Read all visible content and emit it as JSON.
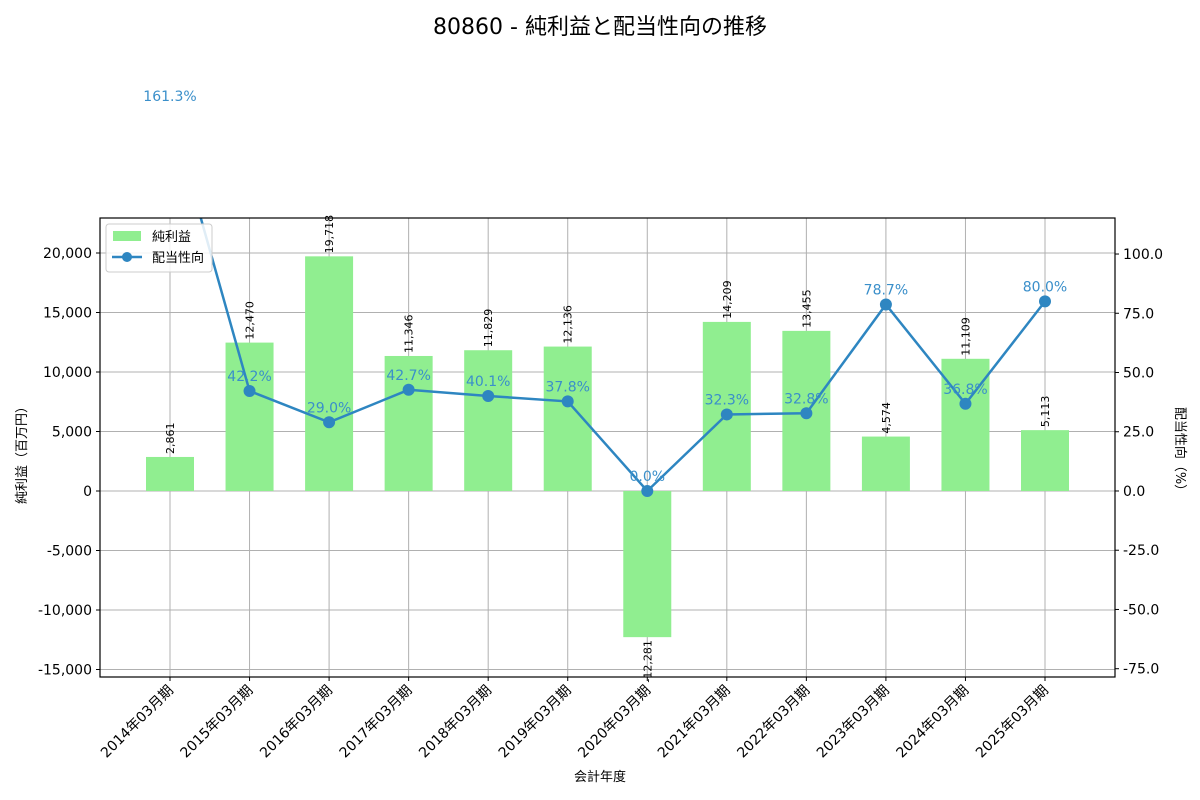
{
  "chart_data": {
    "type": "bar+line",
    "title": "80860 - 純利益と配当性向の推移",
    "xlabel": "会計年度",
    "ylabel_left": "純利益（百万円）",
    "ylabel_right": "配当性向（%）",
    "categories": [
      "2014年03月期",
      "2015年03月期",
      "2016年03月期",
      "2017年03月期",
      "2018年03月期",
      "2019年03月期",
      "2020年03月期",
      "2021年03月期",
      "2022年03月期",
      "2023年03月期",
      "2024年03月期",
      "2025年03月期"
    ],
    "series": [
      {
        "name": "純利益",
        "type": "bar",
        "axis": "left",
        "color": "#90ee90",
        "values": [
          2861,
          12470,
          19718,
          11346,
          11829,
          12136,
          -12281,
          14209,
          13455,
          4574,
          11109,
          5113
        ],
        "labels": [
          "2,861",
          "12,470",
          "19,718",
          "11,346",
          "11,829",
          "12,136",
          "-12,281",
          "14,209",
          "13,455",
          "4,574",
          "11,109",
          "5,113"
        ]
      },
      {
        "name": "配当性向",
        "type": "line",
        "axis": "right",
        "color": "#2e86c1",
        "values": [
          161.3,
          42.2,
          29.0,
          42.7,
          40.1,
          37.8,
          0.0,
          32.3,
          32.8,
          78.7,
          36.8,
          80.0
        ],
        "labels": [
          "161.3%",
          "42.2%",
          "29.0%",
          "42.7%",
          "40.1%",
          "37.8%",
          "0.0%",
          "32.3%",
          "32.8%",
          "78.7%",
          "36.8%",
          "80.0%"
        ]
      }
    ],
    "ylim_left": [
      -15630,
      22940
    ],
    "ylim_right": [
      -78.5,
      115.2
    ],
    "yticks_left": [
      -15000,
      -10000,
      -5000,
      0,
      5000,
      10000,
      15000,
      20000
    ],
    "yticks_left_labels": [
      "-15,000",
      "-10,000",
      "-5,000",
      "0",
      "5,000",
      "10,000",
      "15,000",
      "20,000"
    ],
    "yticks_right": [
      -75,
      -50,
      -25,
      0,
      25,
      50,
      75,
      100
    ],
    "yticks_right_labels": [
      "-75.0",
      "-50.0",
      "-25.0",
      "0.0",
      "25.0",
      "50.0",
      "75.0",
      "100.0"
    ],
    "grid": true,
    "legend_position": "upper left",
    "legend": [
      "純利益",
      "配当性向"
    ]
  }
}
